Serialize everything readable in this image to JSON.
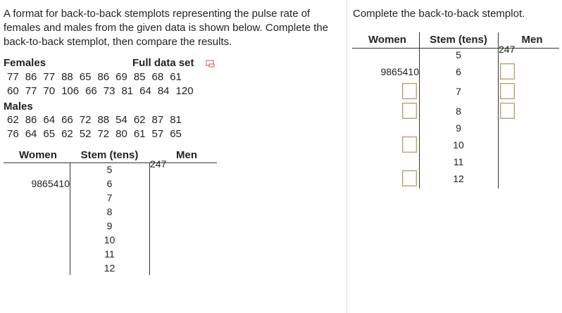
{
  "question": {
    "text": "A format for back-to-back stemplots representing the pulse rate of females and males from the given data is shown below. Complete the back-to-back stemplot, then compare the results.",
    "females_label": "Females",
    "full_data_set": "Full data set",
    "females_rows": [
      [
        77,
        86,
        77,
        88,
        65,
        86,
        69,
        85,
        68,
        61
      ],
      [
        60,
        77,
        70,
        106,
        66,
        73,
        81,
        64,
        84,
        120
      ]
    ],
    "males_label": "Males",
    "males_rows": [
      [
        62,
        86,
        64,
        66,
        72,
        88,
        54,
        62,
        87,
        81
      ],
      [
        76,
        64,
        65,
        62,
        52,
        72,
        80,
        61,
        57,
        65
      ]
    ],
    "stemplot": {
      "headers": [
        "Women",
        "Stem (tens)",
        "Men"
      ],
      "rows": [
        {
          "stem": 5,
          "men": "247"
        },
        {
          "stem": 6,
          "women": "9865410"
        },
        {
          "stem": 7
        },
        {
          "stem": 8
        },
        {
          "stem": 9
        },
        {
          "stem": 10
        },
        {
          "stem": 11
        },
        {
          "stem": 12
        }
      ]
    }
  },
  "answer": {
    "prompt": "Complete the back-to-back stemplot.",
    "headers": [
      "Women",
      "Stem (tens)",
      "Men"
    ],
    "rows": [
      {
        "stem": 5,
        "men": "247"
      },
      {
        "stem": 6,
        "women": "9865410"
      },
      {
        "stem": 7
      },
      {
        "stem": 8
      },
      {
        "stem": 9
      },
      {
        "stem": 10
      },
      {
        "stem": 11
      },
      {
        "stem": 12
      }
    ]
  }
}
